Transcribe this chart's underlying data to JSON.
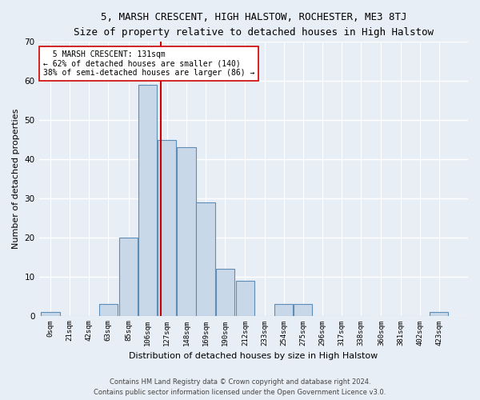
{
  "title": "5, MARSH CRESCENT, HIGH HALSTOW, ROCHESTER, ME3 8TJ",
  "subtitle": "Size of property relative to detached houses in High Halstow",
  "xlabel": "Distribution of detached houses by size in High Halstow",
  "ylabel": "Number of detached properties",
  "footer_line1": "Contains HM Land Registry data © Crown copyright and database right 2024.",
  "footer_line2": "Contains public sector information licensed under the Open Government Licence v3.0.",
  "bin_labels": [
    "0sqm",
    "21sqm",
    "42sqm",
    "63sqm",
    "85sqm",
    "106sqm",
    "127sqm",
    "148sqm",
    "169sqm",
    "190sqm",
    "212sqm",
    "233sqm",
    "254sqm",
    "275sqm",
    "296sqm",
    "317sqm",
    "338sqm",
    "360sqm",
    "381sqm",
    "402sqm",
    "423sqm"
  ],
  "bar_values": [
    1,
    0,
    0,
    3,
    20,
    59,
    45,
    43,
    29,
    12,
    9,
    0,
    3,
    3,
    0,
    0,
    0,
    0,
    0,
    0,
    1
  ],
  "bar_color": "#c8d8e8",
  "bar_edge_color": "#5b8db8",
  "ylim": [
    0,
    70
  ],
  "yticks": [
    0,
    10,
    20,
    30,
    40,
    50,
    60,
    70
  ],
  "property_sqm": 131,
  "bin_width": 21,
  "bin_starts": [
    0,
    21,
    42,
    63,
    85,
    106,
    127,
    148,
    169,
    190,
    212,
    233,
    254,
    275,
    296,
    317,
    338,
    360,
    381,
    402,
    423
  ],
  "vline_color": "#cc0000",
  "annotation_text": "  5 MARSH CRESCENT: 131sqm\n← 62% of detached houses are smaller (140)\n38% of semi-detached houses are larger (86) →",
  "annotation_box_color": "#ffffff",
  "annotation_box_edge": "#cc0000",
  "bg_color": "#e8eef5",
  "grid_color": "#ffffff",
  "title_fontsize": 9,
  "subtitle_fontsize": 8,
  "annotation_fontsize": 7,
  "xlabel_fontsize": 8,
  "ylabel_fontsize": 8,
  "xtick_fontsize": 6.5,
  "ytick_fontsize": 7.5,
  "footer_fontsize": 6
}
